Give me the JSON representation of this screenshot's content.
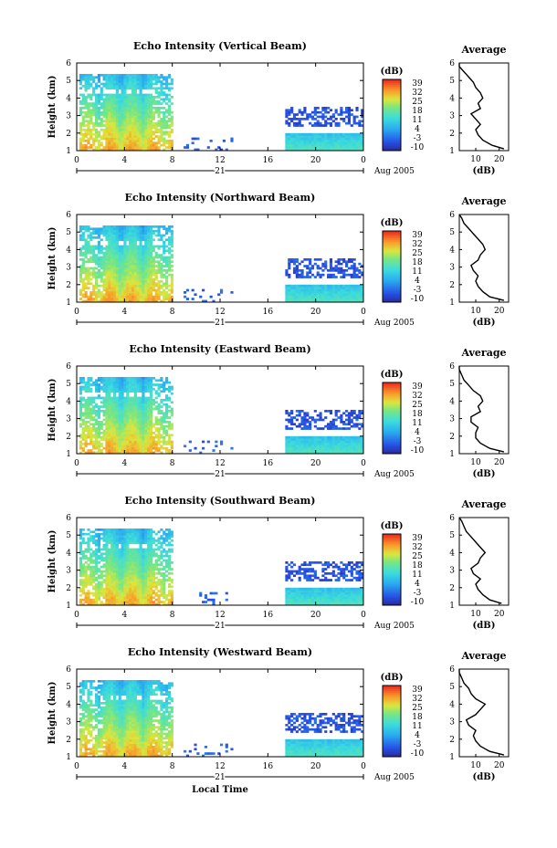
{
  "chart_data": [
    {
      "type": "heatmap",
      "title": "Echo Intensity (Vertical Beam)",
      "ylabel": "Height (km)",
      "xlim": [
        0,
        24
      ],
      "ylim": [
        1,
        6
      ],
      "xticks": [
        "0",
        "4",
        "8",
        "12",
        "16",
        "20",
        "0"
      ],
      "yticks": [
        "1",
        "2",
        "3",
        "4",
        "5",
        "6"
      ],
      "day_label": "21",
      "date_label": "Aug 2005",
      "colorbar": {
        "label": "(dB)",
        "ticks": [
          "39",
          "32",
          "25",
          "18",
          "11",
          "4",
          "-3",
          "-10"
        ],
        "range": [
          -10,
          39
        ]
      },
      "profile": {
        "title": "Average",
        "xlabel": "(dB)",
        "xticks": [
          "10",
          "20"
        ],
        "xlim": [
          3,
          24
        ],
        "yticks": [
          "1",
          "2",
          "3",
          "4",
          "5",
          "6"
        ],
        "heights": [
          1.1,
          1.3,
          1.6,
          1.9,
          2.2,
          2.5,
          2.8,
          3.1,
          3.4,
          3.7,
          4.0,
          4.3,
          4.6,
          4.9,
          5.2,
          5.5,
          5.8,
          6.0
        ],
        "values": [
          22,
          17,
          13,
          11,
          10,
          12,
          10,
          8,
          12,
          11,
          13,
          12,
          10,
          9,
          7,
          5,
          3,
          3
        ]
      }
    },
    {
      "type": "heatmap",
      "title": "Echo Intensity (Northward Beam)",
      "ylabel": "Height (km)",
      "xlim": [
        0,
        24
      ],
      "ylim": [
        1,
        6
      ],
      "xticks": [
        "0",
        "4",
        "8",
        "12",
        "16",
        "20",
        "0"
      ],
      "yticks": [
        "1",
        "2",
        "3",
        "4",
        "5",
        "6"
      ],
      "day_label": "21",
      "date_label": "Aug 2005",
      "colorbar": {
        "label": "(dB)",
        "ticks": [
          "39",
          "32",
          "25",
          "18",
          "11",
          "4",
          "-3",
          "-10"
        ],
        "range": [
          -10,
          39
        ]
      },
      "profile": {
        "title": "Average",
        "xlabel": "(dB)",
        "xticks": [
          "10",
          "20"
        ],
        "xlim": [
          3,
          24
        ],
        "yticks": [
          "1",
          "2",
          "3",
          "4",
          "5",
          "6"
        ],
        "heights": [
          1.1,
          1.3,
          1.6,
          1.9,
          2.2,
          2.5,
          2.8,
          3.1,
          3.4,
          3.7,
          4.0,
          4.3,
          4.6,
          4.9,
          5.2,
          5.5,
          5.8,
          6.0
        ],
        "values": [
          22,
          16,
          13,
          11,
          10,
          11,
          9,
          8,
          11,
          12,
          14,
          13,
          11,
          9,
          7,
          5,
          4,
          3
        ]
      }
    },
    {
      "type": "heatmap",
      "title": "Echo Intensity (Eastward Beam)",
      "ylabel": "Height (km)",
      "xlim": [
        0,
        24
      ],
      "ylim": [
        1,
        6
      ],
      "xticks": [
        "0",
        "4",
        "8",
        "12",
        "16",
        "20",
        "0"
      ],
      "yticks": [
        "1",
        "2",
        "3",
        "4",
        "5",
        "6"
      ],
      "day_label": "21",
      "date_label": "Aug 2005",
      "colorbar": {
        "label": "(dB)",
        "ticks": [
          "39",
          "32",
          "25",
          "18",
          "11",
          "4",
          "-3",
          "-10"
        ],
        "range": [
          -10,
          39
        ]
      },
      "profile": {
        "title": "Average",
        "xlabel": "(dB)",
        "xticks": [
          "10",
          "20"
        ],
        "xlim": [
          3,
          24
        ],
        "yticks": [
          "1",
          "2",
          "3",
          "4",
          "5",
          "6"
        ],
        "heights": [
          1.1,
          1.3,
          1.6,
          1.9,
          2.2,
          2.5,
          2.8,
          3.1,
          3.4,
          3.7,
          4.0,
          4.3,
          4.6,
          4.9,
          5.2,
          5.5,
          5.8,
          6.0
        ],
        "values": [
          22,
          16,
          12,
          10,
          10,
          11,
          8,
          8,
          12,
          11,
          13,
          12,
          9,
          7,
          5,
          4,
          3,
          3
        ]
      }
    },
    {
      "type": "heatmap",
      "title": "Echo Intensity (Southward Beam)",
      "ylabel": "Height (km)",
      "xlim": [
        0,
        24
      ],
      "ylim": [
        1,
        6
      ],
      "xticks": [
        "0",
        "4",
        "8",
        "12",
        "16",
        "20",
        "0"
      ],
      "yticks": [
        "1",
        "2",
        "3",
        "4",
        "5",
        "6"
      ],
      "day_label": "21",
      "date_label": "Aug 2005",
      "colorbar": {
        "label": "(dB)",
        "ticks": [
          "39",
          "32",
          "25",
          "18",
          "11",
          "4",
          "-3",
          "-10"
        ],
        "range": [
          -10,
          39
        ]
      },
      "profile": {
        "title": "Average",
        "xlabel": "(dB)",
        "xticks": [
          "10",
          "20"
        ],
        "xlim": [
          3,
          24
        ],
        "yticks": [
          "1",
          "2",
          "3",
          "4",
          "5",
          "6"
        ],
        "heights": [
          1.1,
          1.3,
          1.6,
          1.9,
          2.2,
          2.5,
          2.8,
          3.1,
          3.4,
          3.7,
          4.0,
          4.3,
          4.6,
          4.9,
          5.2,
          5.5,
          5.8,
          6.0
        ],
        "values": [
          21,
          16,
          13,
          11,
          10,
          12,
          9,
          8,
          11,
          12,
          14,
          12,
          10,
          8,
          6,
          5,
          4,
          3
        ]
      }
    },
    {
      "type": "heatmap",
      "title": "Echo Intensity (Westward Beam)",
      "ylabel": "Height (km)",
      "xlabel": "Local Time",
      "xlim": [
        0,
        24
      ],
      "ylim": [
        1,
        6
      ],
      "xticks": [
        "0",
        "4",
        "8",
        "12",
        "16",
        "20",
        "0"
      ],
      "yticks": [
        "1",
        "2",
        "3",
        "4",
        "5",
        "6"
      ],
      "day_label": "21",
      "date_label": "Aug 2005",
      "colorbar": {
        "label": "(dB)",
        "ticks": [
          "39",
          "32",
          "25",
          "18",
          "11",
          "4",
          "-3",
          "-10"
        ],
        "range": [
          -10,
          39
        ]
      },
      "profile": {
        "title": "Average",
        "xlabel": "(dB)",
        "xticks": [
          "10",
          "20"
        ],
        "xlim": [
          3,
          24
        ],
        "yticks": [
          "1",
          "2",
          "3",
          "4",
          "5",
          "6"
        ],
        "heights": [
          1.1,
          1.3,
          1.6,
          1.9,
          2.2,
          2.5,
          2.8,
          3.1,
          3.4,
          3.7,
          4.0,
          4.3,
          4.6,
          4.9,
          5.2,
          5.5,
          5.8,
          6.0
        ],
        "values": [
          22,
          16,
          12,
          10,
          9,
          10,
          7,
          6,
          10,
          12,
          14,
          10,
          8,
          7,
          5,
          4,
          3,
          3
        ]
      }
    }
  ]
}
